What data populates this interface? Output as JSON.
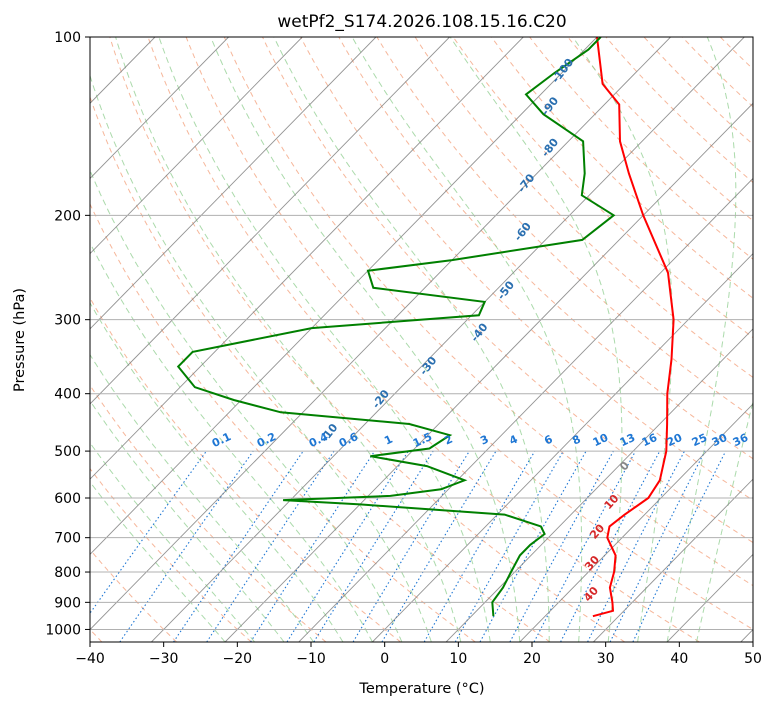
{
  "chart_data": {
    "type": "line",
    "title": "wetPf2_S174.2026.108.15.16.C20",
    "xlabel": "Temperature (°C)",
    "ylabel": "Pressure (hPa)",
    "xlim": [
      -40,
      50
    ],
    "ylim": [
      1050,
      100
    ],
    "y_scale": "log",
    "grid": true,
    "x_ticks": [
      -40,
      -30,
      -20,
      -10,
      0,
      10,
      20,
      30,
      40,
      50
    ],
    "y_ticks": [
      100,
      200,
      300,
      400,
      500,
      600,
      700,
      800,
      900,
      1000
    ],
    "series": [
      {
        "color": "#ff0000",
        "points": [
          {
            "p": 950,
            "t": 26.5
          },
          {
            "p": 930,
            "t": 28.5
          },
          {
            "p": 900,
            "t": 27.3
          },
          {
            "p": 850,
            "t": 25.0
          },
          {
            "p": 800,
            "t": 23.5
          },
          {
            "p": 750,
            "t": 21.5
          },
          {
            "p": 700,
            "t": 18.0
          },
          {
            "p": 670,
            "t": 16.8
          },
          {
            "p": 640,
            "t": 17.3
          },
          {
            "p": 600,
            "t": 18.3
          },
          {
            "p": 560,
            "t": 17.5
          },
          {
            "p": 500,
            "t": 14.5
          },
          {
            "p": 450,
            "t": 11.0
          },
          {
            "p": 400,
            "t": 7.0
          },
          {
            "p": 350,
            "t": 3.0
          },
          {
            "p": 300,
            "t": -2.0
          },
          {
            "p": 250,
            "t": -9.0
          },
          {
            "p": 200,
            "t": -20.0
          },
          {
            "p": 170,
            "t": -27.5
          },
          {
            "p": 150,
            "t": -33.0
          },
          {
            "p": 130,
            "t": -38.0
          },
          {
            "p": 120,
            "t": -43.0
          },
          {
            "p": 100,
            "t": -50.0
          }
        ]
      },
      {
        "color": "#008000",
        "points": [
          {
            "p": 950,
            "t": 13.0
          },
          {
            "p": 900,
            "t": 11.0
          },
          {
            "p": 850,
            "t": 10.5
          },
          {
            "p": 800,
            "t": 9.5
          },
          {
            "p": 750,
            "t": 8.5
          },
          {
            "p": 720,
            "t": 8.5
          },
          {
            "p": 690,
            "t": 9.0
          },
          {
            "p": 670,
            "t": 7.5
          },
          {
            "p": 640,
            "t": 1.0
          },
          {
            "p": 615,
            "t": -20.0
          },
          {
            "p": 605,
            "t": -31.0
          },
          {
            "p": 595,
            "t": -17.0
          },
          {
            "p": 580,
            "t": -11.0
          },
          {
            "p": 560,
            "t": -9.0
          },
          {
            "p": 530,
            "t": -16.0
          },
          {
            "p": 510,
            "t": -25.0
          },
          {
            "p": 495,
            "t": -18.0
          },
          {
            "p": 470,
            "t": -17.0
          },
          {
            "p": 450,
            "t": -24.0
          },
          {
            "p": 430,
            "t": -43.0
          },
          {
            "p": 410,
            "t": -51.0
          },
          {
            "p": 390,
            "t": -58.0
          },
          {
            "p": 360,
            "t": -63.0
          },
          {
            "p": 340,
            "t": -63.0
          },
          {
            "p": 310,
            "t": -50.0
          },
          {
            "p": 295,
            "t": -29.0
          },
          {
            "p": 280,
            "t": -30.0
          },
          {
            "p": 265,
            "t": -47.0
          },
          {
            "p": 248,
            "t": -50.0
          },
          {
            "p": 238,
            "t": -40.0
          },
          {
            "p": 220,
            "t": -25.0
          },
          {
            "p": 200,
            "t": -24.0
          },
          {
            "p": 185,
            "t": -31.0
          },
          {
            "p": 170,
            "t": -33.5
          },
          {
            "p": 150,
            "t": -38.0
          },
          {
            "p": 135,
            "t": -47.0
          },
          {
            "p": 125,
            "t": -52.0
          },
          {
            "p": 115,
            "t": -51.0
          },
          {
            "p": 105,
            "t": -49.5
          },
          {
            "p": 100,
            "t": -49.5
          }
        ]
      }
    ],
    "dry_adiabat_labels": [
      "-100",
      "-90",
      "-80",
      "-70",
      "-60",
      "-50",
      "-40",
      "-30",
      "-20",
      "-10"
    ],
    "moist_adiabat_labels": [
      "0",
      "10",
      "20",
      "30",
      "40"
    ],
    "mixing_ratio_labels": [
      "0.1",
      "0.2",
      "0.4",
      "0.6",
      "1",
      "1.5",
      "2",
      "3",
      "4",
      "6",
      "8",
      "10",
      "13",
      "16",
      "20",
      "25",
      "30",
      "36"
    ],
    "colors": {
      "temperature": "#ff0000",
      "dewpoint": "#008000",
      "isotherm": "#808080",
      "dry_adiabat": "#f4a582",
      "moist_adiabat": "#8fce8f",
      "mixing_ratio": "#1f77d4",
      "dry_adiabat_label": "#2a6fb0",
      "moist_adiabat_label": "#d62728",
      "grid": "#b0b0b0"
    }
  }
}
